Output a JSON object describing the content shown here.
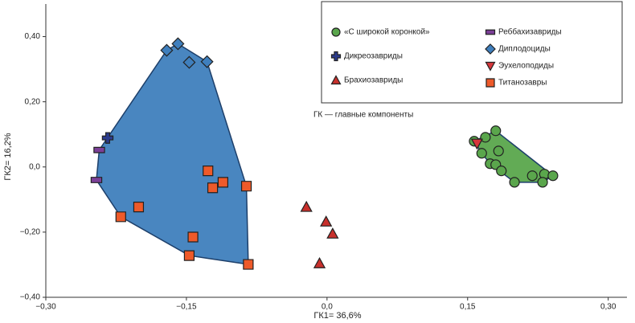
{
  "chart_data": {
    "type": "scatter",
    "xlabel": "ГК1= 36,6%",
    "ylabel": "ГК2= 16,2%",
    "note": "ГК — главные компоненты",
    "xlim": [
      -0.3,
      0.32
    ],
    "ylim": [
      -0.4,
      0.5
    ],
    "xticks": [
      {
        "value": -0.3,
        "label": "−0,30"
      },
      {
        "value": -0.15,
        "label": "−0,15"
      },
      {
        "value": 0,
        "label": "0,0"
      },
      {
        "value": 0.15,
        "label": "0,15"
      },
      {
        "value": 0.3,
        "label": "0,30"
      }
    ],
    "yticks": [
      {
        "value": -0.4,
        "label": "−0,40"
      },
      {
        "value": -0.2,
        "label": "−0,20"
      },
      {
        "value": 0,
        "label": "0,0"
      },
      {
        "value": 0.2,
        "label": "0,20"
      },
      {
        "value": 0.4,
        "label": "0,40"
      }
    ],
    "hulls": [
      {
        "series": [
          1,
          3,
          4,
          6
        ],
        "color": "#3f7fbd"
      },
      {
        "series": [
          0
        ],
        "color": "#5aa64c"
      }
    ],
    "series": [
      {
        "name": "«С широкой коронкой»",
        "marker": "circle",
        "color": "#5aa64c",
        "x": [
          0.157,
          0.169,
          0.18,
          0.165,
          0.183,
          0.174,
          0.18,
          0.186,
          0.2,
          0.219,
          0.232,
          0.241,
          0.23
        ],
        "y": [
          0.079,
          0.091,
          0.111,
          0.042,
          0.049,
          0.01,
          0.007,
          -0.012,
          -0.047,
          -0.027,
          -0.022,
          -0.027,
          -0.047
        ]
      },
      {
        "name": "Дикреозавриды",
        "marker": "plus",
        "color": "#2b3b8c",
        "x": [
          -0.234
        ],
        "y": [
          0.089
        ]
      },
      {
        "name": "Брахиозавриды",
        "marker": "triangle",
        "color": "#c8302c",
        "x": [
          -0.022,
          -0.001,
          0.006,
          -0.008
        ],
        "y": [
          -0.123,
          -0.168,
          -0.205,
          -0.296
        ]
      },
      {
        "name": "Реббахизавриды",
        "marker": "rect",
        "color": "#7b3f97",
        "x": [
          -0.243,
          -0.246
        ],
        "y": [
          0.052,
          -0.04
        ]
      },
      {
        "name": "Диплодоциды",
        "marker": "diamond",
        "color": "#3f7fbd",
        "x": [
          -0.171,
          -0.159,
          -0.147,
          -0.128
        ],
        "y": [
          0.358,
          0.378,
          0.321,
          0.323
        ]
      },
      {
        "name": "Эухелоподиды",
        "marker": "triangle-down",
        "color": "#d6373b",
        "x": [
          0.16
        ],
        "y": [
          0.072
        ]
      },
      {
        "name": "Титанозавры",
        "marker": "square",
        "color": "#ee5a2a",
        "x": [
          -0.127,
          -0.111,
          -0.122,
          -0.086,
          -0.22,
          -0.201,
          -0.143,
          -0.147,
          -0.084
        ],
        "y": [
          -0.012,
          -0.047,
          -0.064,
          -0.059,
          -0.153,
          -0.123,
          -0.215,
          -0.272,
          -0.299
        ]
      }
    ]
  }
}
